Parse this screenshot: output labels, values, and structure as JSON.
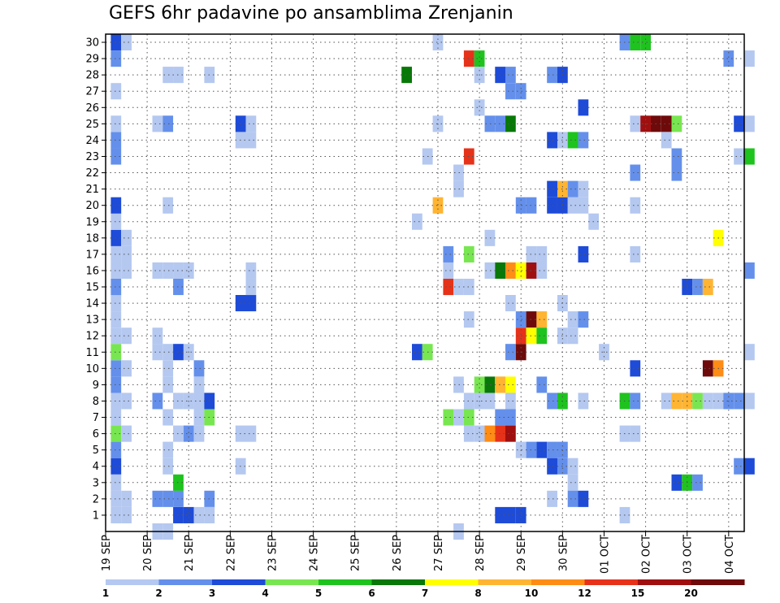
{
  "chart_data": {
    "type": "heatmap",
    "title": "GEFS 6hr padavine po ansamblima Zrenjanin",
    "xlabel": "",
    "ylabel": "",
    "x_tick_labels": [
      "19 SEP",
      "20 SEP",
      "21 SEP",
      "22 SEP",
      "23 SEP",
      "24 SEP",
      "25 SEP",
      "26 SEP",
      "27 SEP",
      "28 SEP",
      "29 SEP",
      "30 SEP",
      "01 OCT",
      "02 OCT",
      "03 OCT",
      "04 OCT"
    ],
    "y_tick_labels": [
      "1",
      "2",
      "3",
      "4",
      "5",
      "6",
      "7",
      "8",
      "9",
      "10",
      "11",
      "12",
      "13",
      "14",
      "15",
      "16",
      "17",
      "18",
      "19",
      "20",
      "21",
      "22",
      "23",
      "24",
      "25",
      "26",
      "27",
      "28",
      "29",
      "30"
    ],
    "ylim": [
      0.5,
      30.5
    ],
    "time_steps_per_day": 4,
    "n_time_steps": 61,
    "grid": true,
    "legend": {
      "position": "bottom",
      "labels": [
        "1",
        "2",
        "3",
        "4",
        "5",
        "6",
        "7",
        "8",
        "10",
        "12",
        "15",
        "20"
      ],
      "colors": [
        "#b4c8f0",
        "#6490eb",
        "#1e4bd7",
        "#78e650",
        "#1ec31e",
        "#087808",
        "#ffff00",
        "#ffb432",
        "#ff8c14",
        "#e63219",
        "#a00f0f",
        "#6e0a0a"
      ]
    },
    "cell_colors": [
      "#b4c8f0",
      "#6490eb",
      "#1e4bd7",
      "#78e650",
      "#1ec31e",
      "#087808",
      "#ffff00",
      "#ffb432",
      "#ff8c14",
      "#e63219",
      "#a00f0f",
      "#6e0a0a"
    ],
    "cells": [
      [
        1,
        1,
        0
      ],
      [
        1,
        2,
        0
      ],
      [
        1,
        3,
        0
      ],
      [
        1,
        4,
        2
      ],
      [
        1,
        5,
        1
      ],
      [
        1,
        6,
        3
      ],
      [
        1,
        7,
        0
      ],
      [
        1,
        8,
        0
      ],
      [
        1,
        9,
        1
      ],
      [
        1,
        10,
        1
      ],
      [
        1,
        11,
        3
      ],
      [
        1,
        12,
        0
      ],
      [
        1,
        13,
        0
      ],
      [
        1,
        14,
        0
      ],
      [
        1,
        15,
        1
      ],
      [
        1,
        16,
        0
      ],
      [
        1,
        17,
        0
      ],
      [
        1,
        18,
        2
      ],
      [
        1,
        19,
        0
      ],
      [
        1,
        20,
        2
      ],
      [
        1,
        23,
        1
      ],
      [
        1,
        24,
        1
      ],
      [
        1,
        25,
        0
      ],
      [
        1,
        27,
        0
      ],
      [
        1,
        29,
        1
      ],
      [
        1,
        30,
        2
      ],
      [
        2,
        1,
        0
      ],
      [
        2,
        2,
        0
      ],
      [
        2,
        6,
        0
      ],
      [
        2,
        8,
        0
      ],
      [
        2,
        10,
        0
      ],
      [
        2,
        12,
        0
      ],
      [
        2,
        16,
        0
      ],
      [
        2,
        17,
        0
      ],
      [
        2,
        18,
        0
      ],
      [
        2,
        30,
        0
      ],
      [
        5,
        0,
        0
      ],
      [
        6,
        0,
        0
      ],
      [
        5,
        2,
        1
      ],
      [
        6,
        2,
        1
      ],
      [
        6,
        4,
        0
      ],
      [
        5,
        8,
        1
      ],
      [
        5,
        11,
        0
      ],
      [
        6,
        11,
        0
      ],
      [
        5,
        12,
        0
      ],
      [
        5,
        16,
        0
      ],
      [
        6,
        16,
        0
      ],
      [
        5,
        25,
        0
      ],
      [
        6,
        25,
        1
      ],
      [
        6,
        5,
        0
      ],
      [
        6,
        7,
        0
      ],
      [
        6,
        9,
        0
      ],
      [
        7,
        8,
        0
      ],
      [
        6,
        10,
        0
      ],
      [
        6,
        20,
        0
      ],
      [
        6,
        28,
        0
      ],
      [
        7,
        28,
        0
      ],
      [
        7,
        1,
        2
      ],
      [
        7,
        2,
        1
      ],
      [
        7,
        3,
        4
      ],
      [
        7,
        6,
        0
      ],
      [
        7,
        11,
        2
      ],
      [
        8,
        1,
        2
      ],
      [
        8,
        6,
        1
      ],
      [
        8,
        8,
        0
      ],
      [
        8,
        11,
        0
      ],
      [
        7,
        15,
        1
      ],
      [
        7,
        16,
        0
      ],
      [
        8,
        16,
        0
      ],
      [
        9,
        1,
        0
      ],
      [
        9,
        10,
        1
      ],
      [
        9,
        7,
        0
      ],
      [
        9,
        8,
        0
      ],
      [
        9,
        9,
        0
      ],
      [
        9,
        6,
        0
      ],
      [
        10,
        1,
        0
      ],
      [
        10,
        2,
        1
      ],
      [
        10,
        8,
        2
      ],
      [
        10,
        7,
        3
      ],
      [
        10,
        28,
        0
      ],
      [
        13,
        4,
        0
      ],
      [
        13,
        6,
        0
      ],
      [
        14,
        6,
        0
      ],
      [
        13,
        14,
        2
      ],
      [
        14,
        14,
        2
      ],
      [
        13,
        24,
        0
      ],
      [
        14,
        24,
        0
      ],
      [
        13,
        25,
        2
      ],
      [
        14,
        25,
        0
      ],
      [
        14,
        15,
        0
      ],
      [
        14,
        16,
        0
      ],
      [
        29,
        28,
        5
      ],
      [
        30,
        19,
        0
      ],
      [
        30,
        11,
        2
      ],
      [
        31,
        11,
        3
      ],
      [
        31,
        23,
        0
      ],
      [
        32,
        20,
        7
      ],
      [
        32,
        25,
        0
      ],
      [
        32,
        30,
        0
      ],
      [
        33,
        15,
        9
      ],
      [
        33,
        16,
        0
      ],
      [
        33,
        17,
        1
      ],
      [
        34,
        15,
        0
      ],
      [
        35,
        15,
        0
      ],
      [
        34,
        22,
        0
      ],
      [
        34,
        21,
        0
      ],
      [
        33,
        7,
        3
      ],
      [
        34,
        7,
        0
      ],
      [
        34,
        9,
        0
      ],
      [
        34,
        0,
        0
      ],
      [
        35,
        7,
        3
      ],
      [
        35,
        6,
        0
      ],
      [
        35,
        8,
        0
      ],
      [
        35,
        23,
        9
      ],
      [
        35,
        17,
        3
      ],
      [
        35,
        29,
        9
      ],
      [
        36,
        29,
        4
      ],
      [
        36,
        28,
        0
      ],
      [
        36,
        26,
        0
      ],
      [
        35,
        13,
        0
      ],
      [
        36,
        6,
        0
      ],
      [
        37,
        6,
        8
      ],
      [
        36,
        8,
        0
      ],
      [
        37,
        8,
        0
      ],
      [
        36,
        9,
        3
      ],
      [
        37,
        9,
        5
      ],
      [
        38,
        9,
        7
      ],
      [
        39,
        9,
        6
      ],
      [
        37,
        18,
        0
      ],
      [
        37,
        25,
        1
      ],
      [
        37,
        16,
        0
      ],
      [
        38,
        16,
        5
      ],
      [
        38,
        1,
        2
      ],
      [
        39,
        1,
        2
      ],
      [
        40,
        1,
        2
      ],
      [
        38,
        6,
        9
      ],
      [
        39,
        6,
        10
      ],
      [
        38,
        7,
        1
      ],
      [
        39,
        7,
        1
      ],
      [
        39,
        8,
        0
      ],
      [
        38,
        9,
        7
      ],
      [
        39,
        11,
        1
      ],
      [
        40,
        11,
        11
      ],
      [
        40,
        12,
        9
      ],
      [
        40,
        13,
        1
      ],
      [
        41,
        13,
        11
      ],
      [
        42,
        13,
        7
      ],
      [
        41,
        12,
        6
      ],
      [
        42,
        12,
        4
      ],
      [
        39,
        14,
        0
      ],
      [
        39,
        16,
        8
      ],
      [
        40,
        16,
        6
      ],
      [
        41,
        16,
        10
      ],
      [
        42,
        16,
        0
      ],
      [
        41,
        17,
        0
      ],
      [
        42,
        17,
        0
      ],
      [
        39,
        25,
        5
      ],
      [
        38,
        25,
        1
      ],
      [
        38,
        28,
        2
      ],
      [
        39,
        27,
        1
      ],
      [
        40,
        27,
        1
      ],
      [
        39,
        28,
        1
      ],
      [
        40,
        20,
        1
      ],
      [
        41,
        20,
        1
      ],
      [
        40,
        5,
        0
      ],
      [
        41,
        5,
        1
      ],
      [
        42,
        5,
        2
      ],
      [
        43,
        5,
        1
      ],
      [
        44,
        5,
        1
      ],
      [
        44,
        4,
        1
      ],
      [
        45,
        4,
        0
      ],
      [
        43,
        4,
        2
      ],
      [
        45,
        3,
        0
      ],
      [
        42,
        9,
        1
      ],
      [
        43,
        2,
        0
      ],
      [
        45,
        2,
        1
      ],
      [
        46,
        2,
        2
      ],
      [
        43,
        8,
        1
      ],
      [
        44,
        8,
        4
      ],
      [
        46,
        8,
        0
      ],
      [
        44,
        12,
        0
      ],
      [
        45,
        12,
        0
      ],
      [
        45,
        13,
        0
      ],
      [
        46,
        13,
        1
      ],
      [
        44,
        14,
        0
      ],
      [
        43,
        20,
        2
      ],
      [
        44,
        20,
        2
      ],
      [
        45,
        20,
        0
      ],
      [
        46,
        20,
        0
      ],
      [
        43,
        21,
        2
      ],
      [
        44,
        21,
        7
      ],
      [
        45,
        21,
        1
      ],
      [
        46,
        21,
        0
      ],
      [
        43,
        24,
        2
      ],
      [
        44,
        24,
        0
      ],
      [
        45,
        24,
        4
      ],
      [
        44,
        28,
        2
      ],
      [
        43,
        28,
        1
      ],
      [
        46,
        24,
        1
      ],
      [
        46,
        26,
        2
      ],
      [
        46,
        17,
        2
      ],
      [
        47,
        19,
        0
      ],
      [
        48,
        11,
        0
      ],
      [
        50,
        1,
        0
      ],
      [
        50,
        6,
        0
      ],
      [
        51,
        6,
        0
      ],
      [
        50,
        8,
        4
      ],
      [
        51,
        8,
        1
      ],
      [
        50,
        30,
        1
      ],
      [
        51,
        30,
        4
      ],
      [
        52,
        30,
        4
      ],
      [
        51,
        25,
        0
      ],
      [
        51,
        17,
        0
      ],
      [
        51,
        22,
        1
      ],
      [
        51,
        20,
        0
      ],
      [
        51,
        10,
        2
      ],
      [
        52,
        25,
        10
      ],
      [
        53,
        25,
        11
      ],
      [
        54,
        25,
        11
      ],
      [
        55,
        25,
        3
      ],
      [
        54,
        8,
        0
      ],
      [
        55,
        8,
        7
      ],
      [
        56,
        8,
        7
      ],
      [
        57,
        8,
        3
      ],
      [
        58,
        8,
        0
      ],
      [
        59,
        8,
        0
      ],
      [
        60,
        8,
        1
      ],
      [
        61,
        8,
        1
      ],
      [
        62,
        8,
        0
      ],
      [
        54,
        24,
        0
      ],
      [
        55,
        23,
        1
      ],
      [
        55,
        22,
        1
      ],
      [
        55,
        3,
        2
      ],
      [
        56,
        3,
        4
      ],
      [
        57,
        3,
        1
      ],
      [
        56,
        15,
        2
      ],
      [
        57,
        15,
        1
      ],
      [
        58,
        15,
        7
      ],
      [
        58,
        10,
        11
      ],
      [
        59,
        10,
        8
      ],
      [
        59,
        18,
        6
      ],
      [
        60,
        29,
        1
      ],
      [
        61,
        23,
        0
      ],
      [
        61,
        25,
        2
      ],
      [
        62,
        25,
        0
      ],
      [
        62,
        23,
        4
      ],
      [
        62,
        4,
        2
      ],
      [
        61,
        4,
        1
      ],
      [
        62,
        29,
        0
      ],
      [
        62,
        11,
        0
      ],
      [
        62,
        16,
        1
      ]
    ]
  }
}
